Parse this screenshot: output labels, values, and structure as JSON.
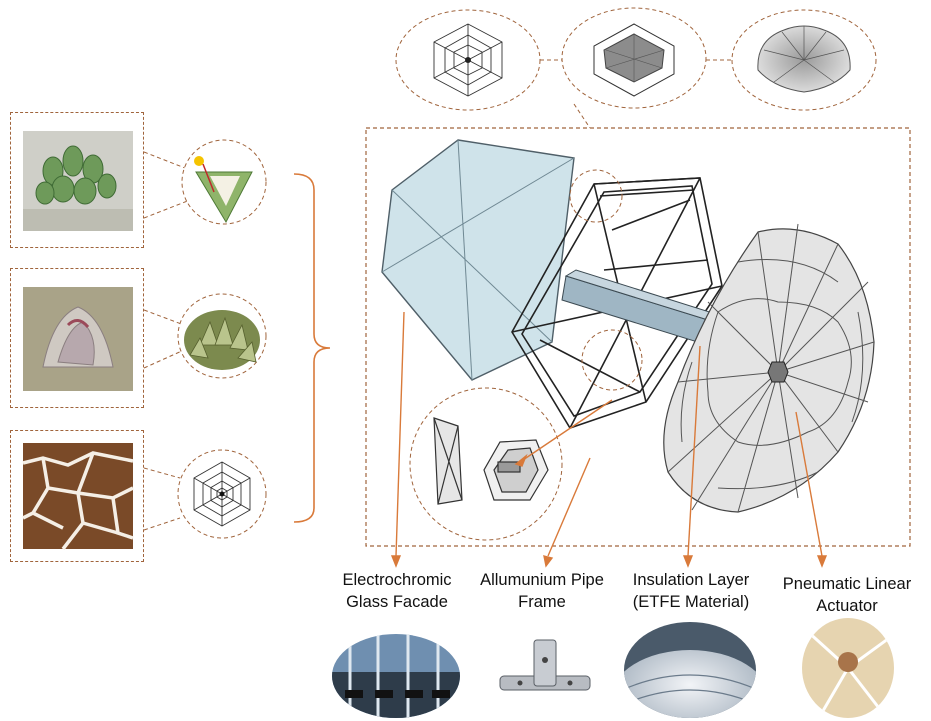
{
  "labels": {
    "glass": {
      "line1": "Electrochromic",
      "line2": "Glass Facade"
    },
    "frame": {
      "line1": "Allumunium Pipe",
      "line2": "Frame"
    },
    "insulation": {
      "line1": "Insulation Layer",
      "line2": "(ETFE Material)"
    },
    "actuator": {
      "line1": "Pneumatic Linear",
      "line2": "Actuator"
    }
  },
  "colors": {
    "accent": "#d97a3a",
    "dashed_frame": "#a0643c",
    "glass_fill": "#cfe3ea",
    "membrane": "#d9d9d9",
    "frame_stroke": "#222222"
  },
  "icons": {
    "plant_1": "succulent-photo",
    "plant_2": "dried-plant-photo",
    "plant_3": "cracked-earth-photo",
    "pattern": "hexagon-web-icon"
  }
}
